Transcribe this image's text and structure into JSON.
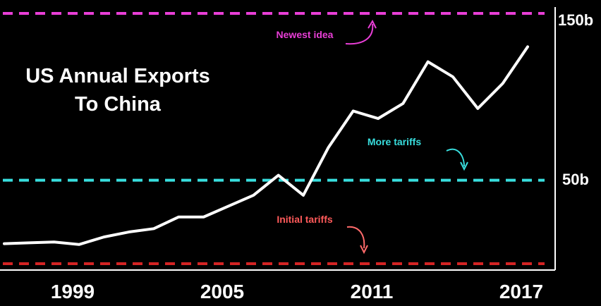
{
  "chart_data": {
    "type": "line",
    "title": [
      "US Annual Exports",
      "To China"
    ],
    "x": [
      1996,
      1997,
      1998,
      1999,
      2000,
      2001,
      2002,
      2003,
      2004,
      2005,
      2006,
      2007,
      2008,
      2009,
      2010,
      2011,
      2012,
      2013,
      2014,
      2015,
      2016,
      2017
    ],
    "series": [
      {
        "values": [
          12,
          12.5,
          13,
          11.5,
          16,
          19,
          21,
          28,
          28,
          34.5,
          41,
          53,
          41,
          69.5,
          91.5,
          87,
          96,
          121,
          112,
          93,
          108,
          130
        ]
      }
    ],
    "xticks": [
      "1999",
      "2005",
      "2011",
      "2017"
    ],
    "ytick_labels": [
      "150b",
      "50b"
    ],
    "ylim": [
      0,
      150
    ],
    "reference_lines": [
      {
        "value": 150,
        "label": "Newest idea",
        "color": "#e83ed6"
      },
      {
        "value": 50,
        "label": "More tariffs",
        "color": "#38dede"
      },
      {
        "value": 0,
        "label": "Initial tariffs",
        "color": "#d42424"
      }
    ],
    "colors": {
      "line": "#ffffff",
      "background": "#000000",
      "axis": "#ffffff"
    },
    "grid": false,
    "legend": "none"
  }
}
